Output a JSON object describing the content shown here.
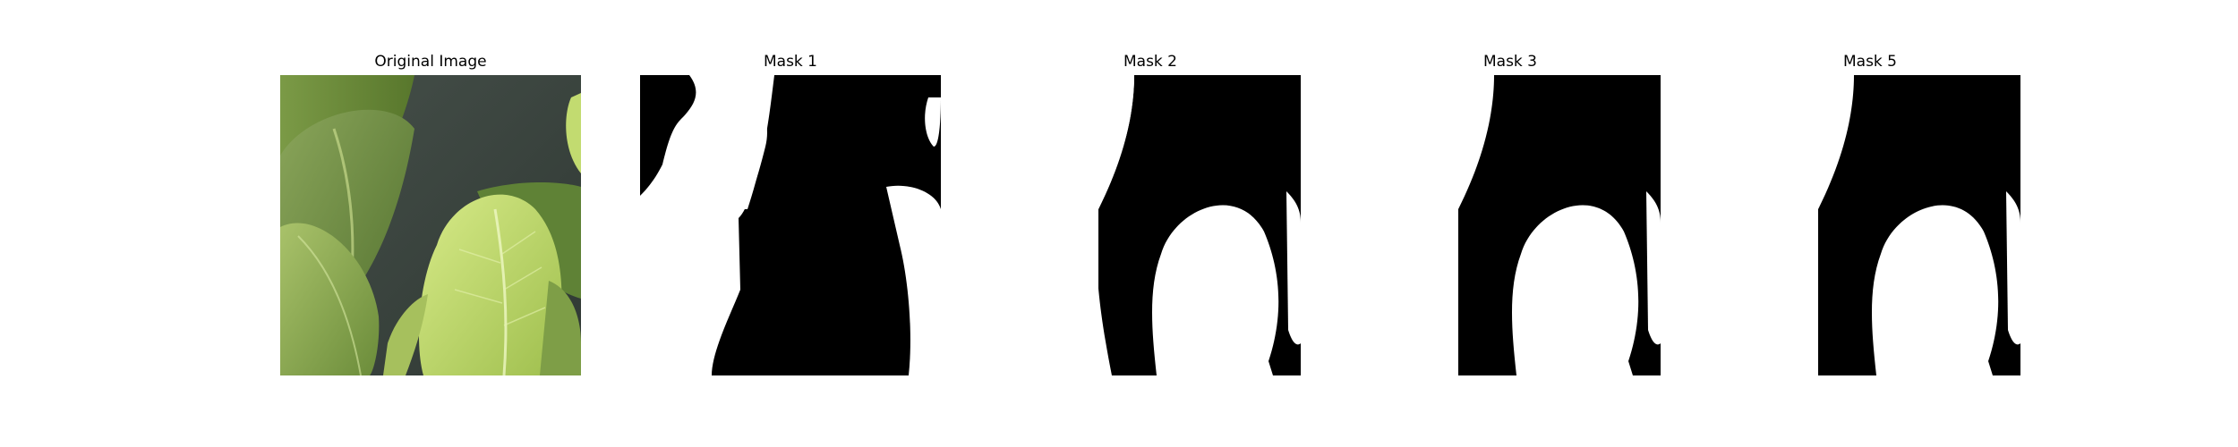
{
  "figure": {
    "panels": [
      {
        "title": "Original Image",
        "kind": "photo",
        "subject": "leafy green vegetable (bok choy) leaves"
      },
      {
        "title": "Mask 1",
        "kind": "mask",
        "foreground_color": "#ffffff",
        "background_color": "#000000"
      },
      {
        "title": "Mask 2",
        "kind": "mask",
        "foreground_color": "#ffffff",
        "background_color": "#000000"
      },
      {
        "title": "Mask 3",
        "kind": "mask",
        "foreground_color": "#ffffff",
        "background_color": "#000000"
      },
      {
        "title": "Mask 5",
        "kind": "mask",
        "foreground_color": "#ffffff",
        "background_color": "#000000"
      }
    ]
  }
}
